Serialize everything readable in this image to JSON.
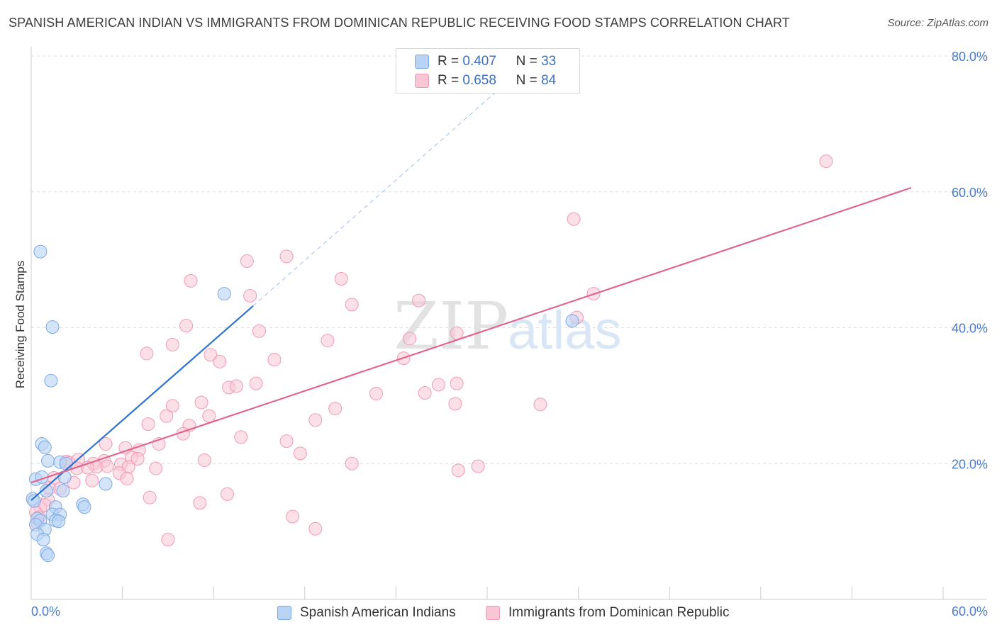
{
  "title": "SPANISH AMERICAN INDIAN VS IMMIGRANTS FROM DOMINICAN REPUBLIC RECEIVING FOOD STAMPS CORRELATION CHART",
  "source": "Source: ZipAtlas.com",
  "watermark": {
    "zip": "ZIP",
    "atlas": "atlas"
  },
  "legend_stats": [
    {
      "r_label": "R =",
      "r_value": "0.407",
      "n_label": "N =",
      "n_value": "33"
    },
    {
      "r_label": "R =",
      "r_value": "0.658",
      "n_label": "N =",
      "n_value": "84"
    }
  ],
  "colors": {
    "blue_fill": "#b9d3f5",
    "blue_stroke": "#7aa8e6",
    "blue_line": "#2f72d0",
    "pink_fill": "#f9c6d6",
    "pink_stroke": "#f09ab5",
    "pink_line": "#e0668f",
    "tick_text": "#4a7cc9",
    "grid": "#dddddd"
  },
  "chart_data": {
    "type": "scatter",
    "title": "SPANISH AMERICAN INDIAN VS IMMIGRANTS FROM DOMINICAN REPUBLIC RECEIVING FOOD STAMPS CORRELATION CHART",
    "xlabel": "",
    "ylabel": "Receiving Food Stamps",
    "xlim": [
      0,
      60
    ],
    "ylim": [
      0,
      80
    ],
    "x_tick_labels": [
      "0.0%",
      "60.0%"
    ],
    "y_tick_labels": [
      "20.0%",
      "40.0%",
      "60.0%",
      "80.0%"
    ],
    "y_ticks": [
      20,
      40,
      60,
      80
    ],
    "grid": true,
    "legend_position": "bottom",
    "series": [
      {
        "name": "Spanish American Indians",
        "color": "#7aa8e6",
        "points": [
          [
            0.6,
            51.2
          ],
          [
            1.4,
            40.1
          ],
          [
            1.3,
            32.2
          ],
          [
            12.7,
            45.0
          ],
          [
            0.7,
            22.9
          ],
          [
            0.9,
            22.4
          ],
          [
            1.1,
            20.4
          ],
          [
            1.9,
            20.2
          ],
          [
            2.3,
            20.0
          ],
          [
            0.3,
            17.7
          ],
          [
            0.7,
            18.0
          ],
          [
            2.2,
            18.0
          ],
          [
            4.9,
            17.0
          ],
          [
            1.0,
            16.0
          ],
          [
            2.1,
            16.0
          ],
          [
            0.1,
            14.8
          ],
          [
            0.2,
            14.5
          ],
          [
            1.6,
            13.6
          ],
          [
            3.4,
            14.0
          ],
          [
            3.5,
            13.6
          ],
          [
            1.4,
            12.5
          ],
          [
            1.9,
            12.5
          ],
          [
            0.4,
            11.9
          ],
          [
            0.6,
            11.6
          ],
          [
            1.6,
            11.6
          ],
          [
            1.8,
            11.5
          ],
          [
            0.3,
            11.0
          ],
          [
            0.9,
            10.3
          ],
          [
            0.4,
            9.6
          ],
          [
            0.8,
            8.8
          ],
          [
            1.0,
            6.8
          ],
          [
            1.1,
            6.5
          ],
          [
            35.6,
            41.0
          ]
        ]
      },
      {
        "name": "Immigrants from Dominican Republic",
        "color": "#f09ab5",
        "points": [
          [
            52.3,
            64.5
          ],
          [
            35.7,
            56.0
          ],
          [
            14.2,
            49.8
          ],
          [
            16.8,
            50.5
          ],
          [
            10.5,
            46.9
          ],
          [
            20.4,
            47.2
          ],
          [
            14.4,
            44.7
          ],
          [
            37.0,
            45.0
          ],
          [
            25.5,
            44.0
          ],
          [
            21.1,
            43.4
          ],
          [
            10.2,
            40.3
          ],
          [
            15.0,
            39.5
          ],
          [
            28.0,
            39.2
          ],
          [
            35.9,
            41.5
          ],
          [
            9.3,
            37.5
          ],
          [
            19.5,
            38.1
          ],
          [
            24.9,
            38.4
          ],
          [
            7.6,
            36.2
          ],
          [
            11.8,
            36.0
          ],
          [
            12.4,
            35.0
          ],
          [
            16.0,
            35.3
          ],
          [
            24.5,
            35.5
          ],
          [
            13.0,
            31.2
          ],
          [
            13.5,
            31.4
          ],
          [
            14.8,
            31.8
          ],
          [
            26.8,
            31.6
          ],
          [
            28.0,
            31.8
          ],
          [
            22.7,
            30.3
          ],
          [
            25.9,
            30.4
          ],
          [
            11.2,
            29.0
          ],
          [
            9.3,
            28.5
          ],
          [
            33.5,
            28.7
          ],
          [
            27.9,
            28.8
          ],
          [
            20.0,
            28.1
          ],
          [
            8.9,
            27.0
          ],
          [
            11.7,
            27.0
          ],
          [
            18.7,
            26.4
          ],
          [
            7.7,
            25.8
          ],
          [
            10.4,
            25.6
          ],
          [
            10.0,
            24.4
          ],
          [
            13.8,
            23.9
          ],
          [
            16.8,
            23.3
          ],
          [
            4.9,
            22.9
          ],
          [
            8.4,
            22.9
          ],
          [
            6.2,
            22.3
          ],
          [
            7.1,
            22.0
          ],
          [
            17.7,
            21.5
          ],
          [
            6.6,
            20.9
          ],
          [
            11.4,
            20.5
          ],
          [
            3.1,
            20.6
          ],
          [
            7.0,
            20.7
          ],
          [
            4.8,
            20.4
          ],
          [
            2.3,
            20.3
          ],
          [
            2.5,
            20.1
          ],
          [
            4.1,
            20.0
          ],
          [
            5.9,
            19.9
          ],
          [
            4.3,
            19.5
          ],
          [
            5.0,
            19.6
          ],
          [
            6.4,
            19.5
          ],
          [
            8.2,
            19.3
          ],
          [
            3.0,
            19.3
          ],
          [
            3.7,
            19.4
          ],
          [
            28.1,
            19.0
          ],
          [
            29.4,
            19.6
          ],
          [
            5.8,
            18.6
          ],
          [
            1.5,
            17.9
          ],
          [
            6.3,
            17.8
          ],
          [
            2.8,
            17.2
          ],
          [
            4.0,
            17.5
          ],
          [
            1.2,
            16.4
          ],
          [
            1.9,
            16.3
          ],
          [
            12.9,
            15.5
          ],
          [
            7.8,
            15.0
          ],
          [
            11.1,
            14.2
          ],
          [
            1.1,
            14.7
          ],
          [
            0.6,
            13.5
          ],
          [
            0.9,
            13.9
          ],
          [
            0.3,
            12.8
          ],
          [
            0.5,
            12.1
          ],
          [
            0.4,
            11.3
          ],
          [
            17.2,
            12.2
          ],
          [
            18.7,
            10.4
          ],
          [
            9.0,
            8.8
          ],
          [
            21.1,
            20.0
          ]
        ]
      }
    ],
    "trendlines": [
      {
        "series": "Spanish American Indians",
        "from": [
          0,
          14.6
        ],
        "to": [
          14.6,
          43.2
        ],
        "dashed_extension_to": [
          32.5,
          78.5
        ]
      },
      {
        "series": "Immigrants from Dominican Republic",
        "from": [
          0,
          17.2
        ],
        "to": [
          57.9,
          60.6
        ]
      }
    ]
  }
}
